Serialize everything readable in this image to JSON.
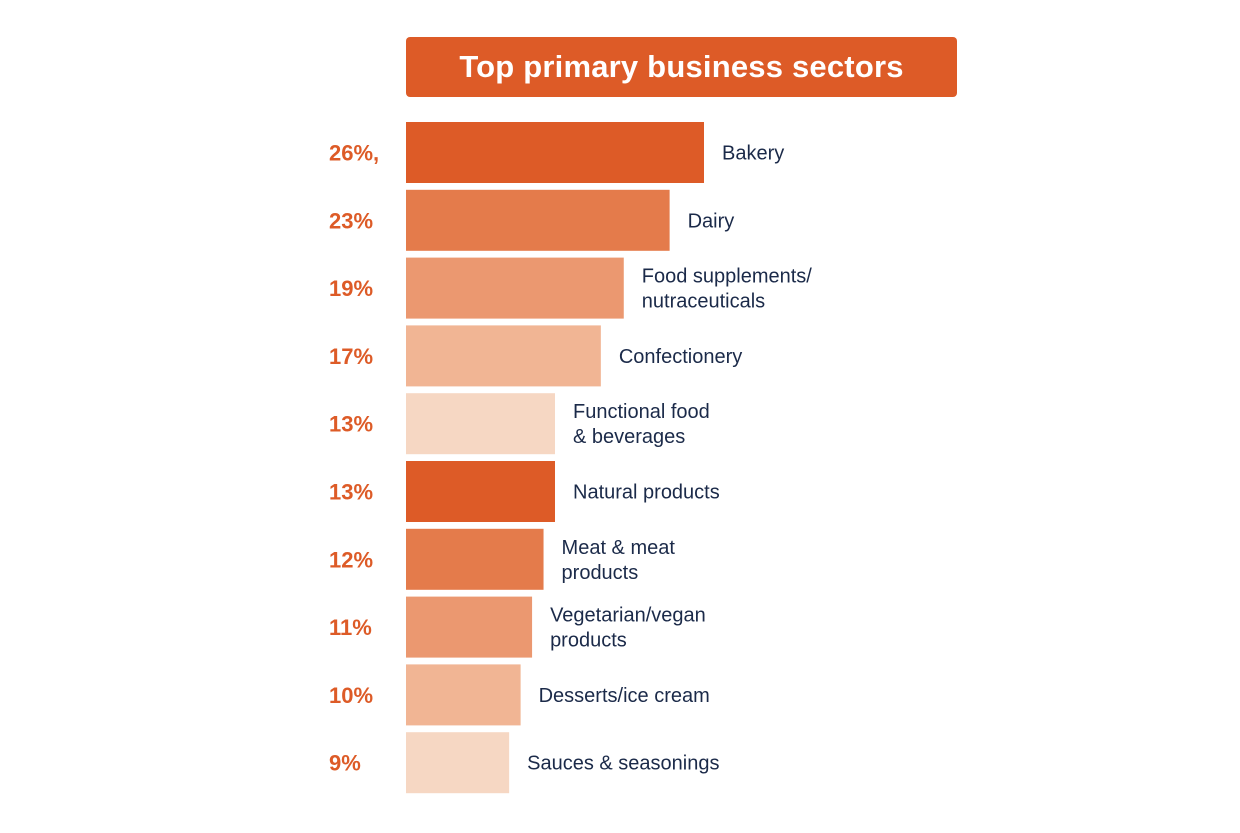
{
  "chart_data": {
    "type": "bar",
    "orientation": "horizontal",
    "title": "Top primary business sectors",
    "categories": [
      [
        "Bakery"
      ],
      [
        "Dairy"
      ],
      [
        "Food supplements/",
        "nutraceuticals"
      ],
      [
        "Confectionery"
      ],
      [
        "Functional food",
        "& beverages"
      ],
      [
        "Natural products"
      ],
      [
        "Meat & meat",
        "products"
      ],
      [
        "Vegetarian/vegan",
        "products"
      ],
      [
        "Desserts/ice cream"
      ],
      [
        "Sauces & seasonings"
      ]
    ],
    "values": [
      26,
      23,
      19,
      17,
      13,
      13,
      12,
      11,
      10,
      9
    ],
    "value_labels": [
      "26%,",
      "23%",
      "19%",
      "17%",
      "13%",
      "13%",
      "12%",
      "11%",
      "10%",
      "9%"
    ],
    "bar_colors": [
      "#dd5b27",
      "#e47b4b",
      "#eb9870",
      "#f1b594",
      "#f6d7c3",
      "#dd5b27",
      "#e47b4b",
      "#eb9870",
      "#f1b594",
      "#f6d7c3"
    ]
  }
}
